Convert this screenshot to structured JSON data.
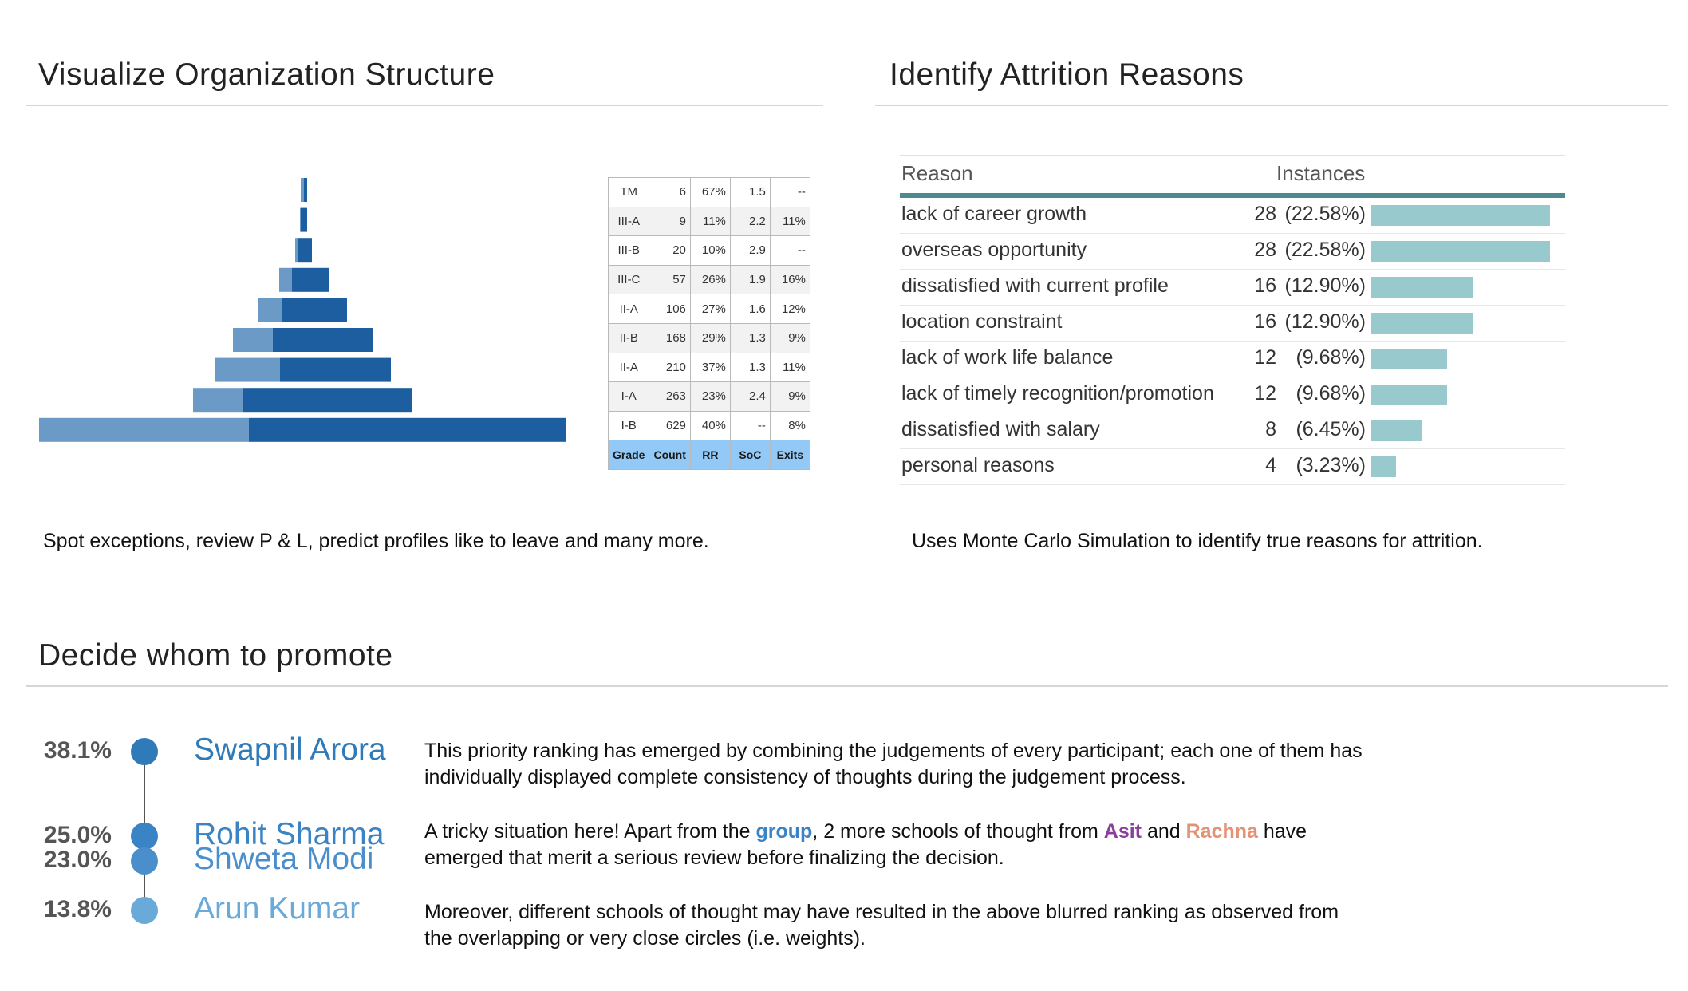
{
  "org": {
    "title": "Visualize Organization Structure",
    "caption": "Spot exceptions, review P & L, predict profiles like to leave and many more.",
    "pyramid_colors": {
      "light": "#6b9ac6",
      "dark": "#1c5e9f"
    },
    "table": {
      "headers": [
        "Grade",
        "Count",
        "RR",
        "SoC",
        "Exits"
      ],
      "rows": [
        {
          "grade": "TM",
          "count": "6",
          "rr": "67%",
          "soc": "1.5",
          "exits": "--"
        },
        {
          "grade": "III-A",
          "count": "9",
          "rr": "11%",
          "soc": "2.2",
          "exits": "11%"
        },
        {
          "grade": "III-B",
          "count": "20",
          "rr": "10%",
          "soc": "2.9",
          "exits": "--"
        },
        {
          "grade": "III-C",
          "count": "57",
          "rr": "26%",
          "soc": "1.9",
          "exits": "16%"
        },
        {
          "grade": "II-A",
          "count": "106",
          "rr": "27%",
          "soc": "1.6",
          "exits": "12%"
        },
        {
          "grade": "II-B",
          "count": "168",
          "rr": "29%",
          "soc": "1.3",
          "exits": "9%"
        },
        {
          "grade": "II-A",
          "count": "210",
          "rr": "37%",
          "soc": "1.3",
          "exits": "11%"
        },
        {
          "grade": "I-A",
          "count": "263",
          "rr": "23%",
          "soc": "2.4",
          "exits": "9%"
        },
        {
          "grade": "I-B",
          "count": "629",
          "rr": "40%",
          "soc": "--",
          "exits": "8%"
        }
      ]
    }
  },
  "attrition": {
    "title": "Identify Attrition Reasons",
    "caption": "Uses Monte Carlo Simulation to identify true reasons for attrition.",
    "col_reason": "Reason",
    "col_instances": "Instances",
    "bar_color": "#98c9cc",
    "rows": [
      {
        "reason": "lack of career growth",
        "count": "28",
        "pct": "(22.58%)",
        "value": 28
      },
      {
        "reason": "overseas opportunity",
        "count": "28",
        "pct": "(22.58%)",
        "value": 28
      },
      {
        "reason": "dissatisfied with current profile",
        "count": "16",
        "pct": "(12.90%)",
        "value": 16
      },
      {
        "reason": "location constraint",
        "count": "16",
        "pct": "(12.90%)",
        "value": 16
      },
      {
        "reason": "lack of work life balance",
        "count": "12",
        "pct": "(9.68%)",
        "value": 12
      },
      {
        "reason": "lack of timely recognition/promotion",
        "count": "12",
        "pct": "(9.68%)",
        "value": 12
      },
      {
        "reason": "dissatisfied with salary",
        "count": "8",
        "pct": "(6.45%)",
        "value": 8
      },
      {
        "reason": "personal reasons",
        "count": "4",
        "pct": "(3.23%)",
        "value": 4
      }
    ]
  },
  "promote": {
    "title": "Decide whom to promote",
    "candidates": [
      {
        "pct": "38.1%",
        "name": "Swapnil Arora",
        "weight": 38.1,
        "color": "#2f7ab8"
      },
      {
        "pct": "25.0%",
        "name": "Rohit Sharma",
        "weight": 25.0,
        "color": "#3a83c4"
      },
      {
        "pct": "23.0%",
        "name": "Shweta Modi",
        "weight": 23.0,
        "color": "#4a8fcc"
      },
      {
        "pct": "13.8%",
        "name": "Arun Kumar",
        "weight": 13.8,
        "color": "#6aaad8"
      }
    ],
    "para1": "This priority ranking has emerged by combining the judgements of every participant; each one of them has individually displayed complete consistency of thoughts during the judgement process.",
    "para2": {
      "a": "A tricky situation here! Apart from the ",
      "group": "group",
      "b": ", 2 more schools of thought from ",
      "asit": "Asit",
      "c": " and ",
      "rachna": "Rachna",
      "d": " have emerged that merit a serious review before finalizing the decision."
    },
    "para3": "Moreover, different schools of thought may have resulted in the above blurred ranking as observed from the overlapping or very close circles (i.e. weights)."
  }
}
